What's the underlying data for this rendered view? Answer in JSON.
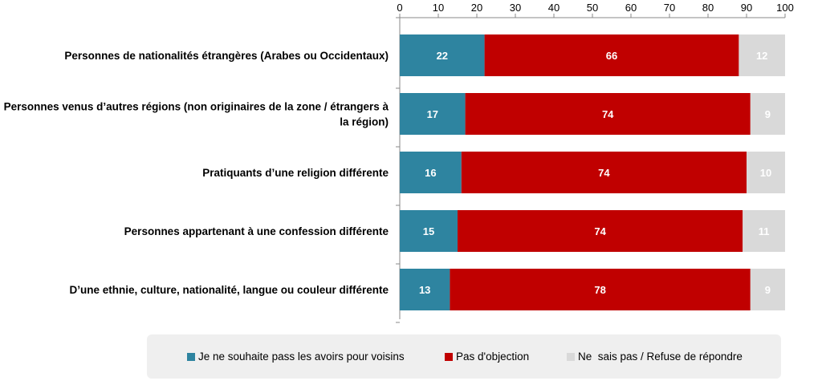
{
  "chart_data": {
    "type": "bar",
    "orientation": "horizontal",
    "stacked": true,
    "xlim": [
      0,
      100
    ],
    "x_ticks": [
      "0",
      "10",
      "20",
      "30",
      "40",
      "50",
      "60",
      "70",
      "80",
      "90",
      "100"
    ],
    "categories": [
      [
        "Personnes de nationalités étrangères (Arabes ou Occidentaux)"
      ],
      [
        "Personnes venus d’autres régions (non originaires de la zone / étrangers à",
        "la région)"
      ],
      [
        "Pratiquants d’une religion différente"
      ],
      [
        "Personnes appartenant à une confession différente"
      ],
      [
        "D’une ethnie, culture, nationalité, langue ou couleur différente"
      ]
    ],
    "series": [
      {
        "name": "Je ne souhaite pass les avoirs pour voisins",
        "color": "#2e84a0",
        "label_color": "#ffffff",
        "values": [
          22,
          17,
          16,
          15,
          13
        ]
      },
      {
        "name": "Pas d'objection",
        "color": "#c00000",
        "label_color": "#ffffff",
        "values": [
          66,
          74,
          74,
          74,
          78
        ]
      },
      {
        "name": "Ne  sais pas / Refuse de répondre",
        "color": "#d9d9d9",
        "label_color": "#ffffff",
        "values": [
          12,
          9,
          10,
          11,
          9
        ]
      }
    ],
    "legend_position": "bottom",
    "grid": false
  }
}
